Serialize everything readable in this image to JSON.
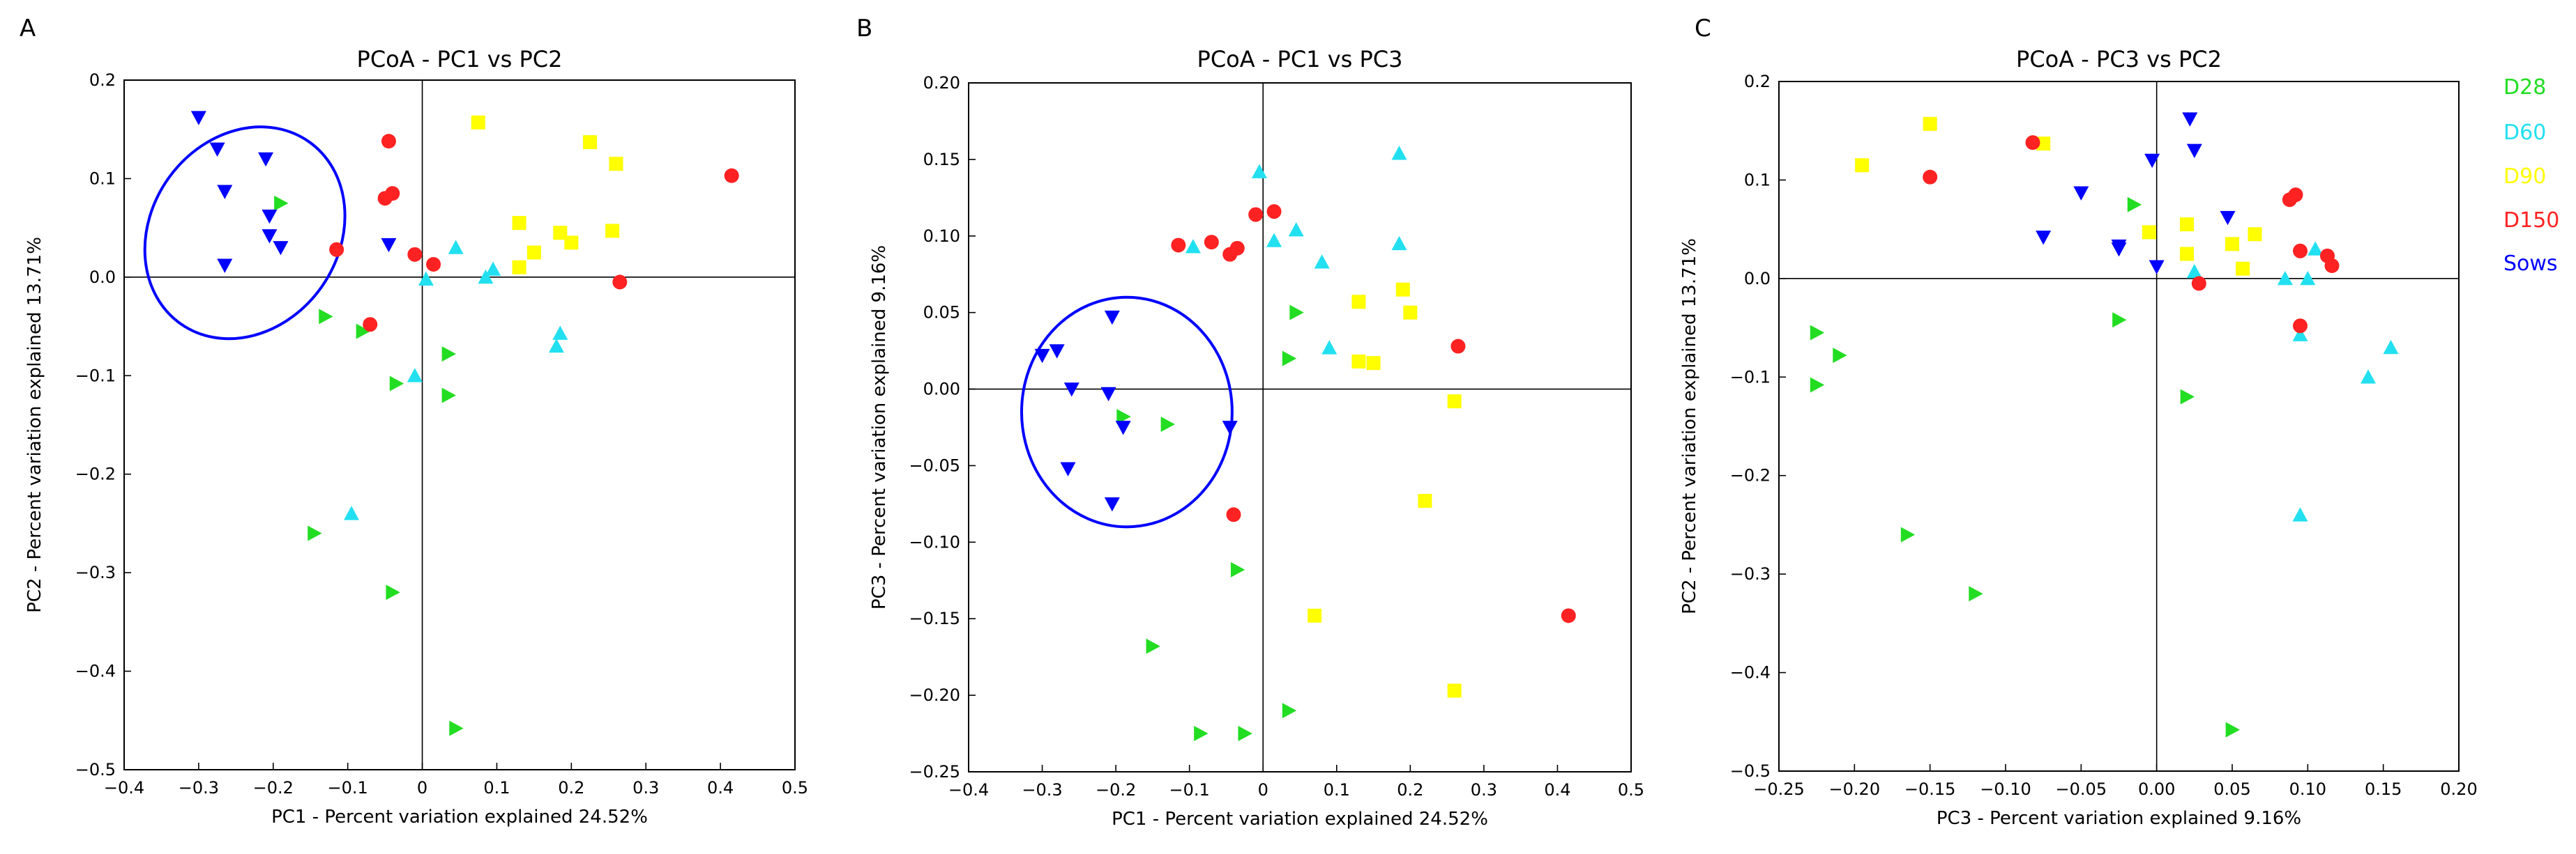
{
  "legend": {
    "entries": [
      {
        "label": "D28",
        "color": "#22dd22",
        "marker": "triangle-right"
      },
      {
        "label": "D60",
        "color": "#22e0f0",
        "marker": "triangle-up"
      },
      {
        "label": "D90",
        "color": "#ffff00",
        "marker": "square"
      },
      {
        "label": "D150",
        "color": "#ff2222",
        "marker": "circle"
      },
      {
        "label": "Sows",
        "color": "#0000ff",
        "marker": "triangle-down"
      }
    ]
  },
  "chart_data": [
    {
      "panel_label": "A",
      "type": "scatter",
      "title": "PCoA - PC1 vs PC2",
      "xlabel": "PC1 - Percent variation explained 24.52%",
      "ylabel": "PC2 - Percent variation explained 13.71%",
      "xlim": [
        -0.4,
        0.5
      ],
      "ylim": [
        -0.5,
        0.2
      ],
      "xticks": [
        -0.4,
        -0.3,
        -0.2,
        -0.1,
        0,
        0.1,
        0.2,
        0.3,
        0.4,
        0.5
      ],
      "yticks": [
        -0.5,
        -0.4,
        -0.3,
        -0.2,
        -0.1,
        0,
        0.1,
        0.2
      ],
      "xtick_labels": [
        "−0.4",
        "−0.3",
        "−0.2",
        "−0.1",
        "0",
        "0.1",
        "0.2",
        "0.3",
        "0.4",
        "0.5"
      ],
      "ytick_labels": [
        "−0.5",
        "−0.4",
        "−0.3",
        "−0.2",
        "−0.1",
        "0.0",
        "0.1",
        "0.2"
      ],
      "ellipse": {
        "cx": -0.238,
        "cy": 0.045,
        "rx": 0.126,
        "ry": 0.113,
        "rotation_deg": 35
      },
      "series": [
        {
          "name": "D28",
          "points": [
            [
              -0.19,
              0.075
            ],
            [
              -0.13,
              -0.04
            ],
            [
              -0.08,
              -0.055
            ],
            [
              -0.035,
              -0.108
            ],
            [
              0.035,
              -0.078
            ],
            [
              0.035,
              -0.12
            ],
            [
              -0.145,
              -0.26
            ],
            [
              -0.04,
              -0.32
            ],
            [
              0.045,
              -0.458
            ]
          ]
        },
        {
          "name": "D60",
          "points": [
            [
              0.005,
              -0.002
            ],
            [
              0.045,
              0.03
            ],
            [
              0.085,
              0.0
            ],
            [
              0.095,
              0.008
            ],
            [
              0.18,
              -0.07
            ],
            [
              0.185,
              -0.057
            ],
            [
              -0.095,
              -0.24
            ],
            [
              -0.01,
              -0.1
            ]
          ]
        },
        {
          "name": "D90",
          "points": [
            [
              0.075,
              0.157
            ],
            [
              0.225,
              0.137
            ],
            [
              0.26,
              0.115
            ],
            [
              0.13,
              0.055
            ],
            [
              0.185,
              0.045
            ],
            [
              0.2,
              0.035
            ],
            [
              0.15,
              0.025
            ],
            [
              0.13,
              0.01
            ],
            [
              0.255,
              0.047
            ]
          ]
        },
        {
          "name": "D150",
          "points": [
            [
              -0.045,
              0.138
            ],
            [
              -0.04,
              0.085
            ],
            [
              -0.05,
              0.08
            ],
            [
              -0.115,
              0.028
            ],
            [
              -0.01,
              0.023
            ],
            [
              0.015,
              0.013
            ],
            [
              0.265,
              -0.005
            ],
            [
              -0.07,
              -0.048
            ],
            [
              0.415,
              0.103
            ]
          ]
        },
        {
          "name": "Sows",
          "points": [
            [
              -0.3,
              0.162
            ],
            [
              -0.275,
              0.13
            ],
            [
              -0.265,
              0.087
            ],
            [
              -0.21,
              0.12
            ],
            [
              -0.205,
              0.062
            ],
            [
              -0.205,
              0.042
            ],
            [
              -0.19,
              0.03
            ],
            [
              -0.265,
              0.012
            ],
            [
              -0.045,
              0.033
            ]
          ]
        }
      ]
    },
    {
      "panel_label": "B",
      "type": "scatter",
      "title": "PCoA - PC1 vs PC3",
      "xlabel": "PC1 - Percent variation explained 24.52%",
      "ylabel": "PC3 - Percent variation explained 9.16%",
      "xlim": [
        -0.4,
        0.5
      ],
      "ylim": [
        -0.25,
        0.2
      ],
      "xticks": [
        -0.4,
        -0.3,
        -0.2,
        -0.1,
        0,
        0.1,
        0.2,
        0.3,
        0.4,
        0.5
      ],
      "yticks": [
        -0.25,
        -0.2,
        -0.15,
        -0.1,
        -0.05,
        0,
        0.05,
        0.1,
        0.15,
        0.2
      ],
      "xtick_labels": [
        "−0.4",
        "−0.3",
        "−0.2",
        "−0.1",
        "0",
        "0.1",
        "0.2",
        "0.3",
        "0.4",
        "0.5"
      ],
      "ytick_labels": [
        "−0.25",
        "−0.20",
        "−0.15",
        "−0.10",
        "−0.05",
        "0.00",
        "0.05",
        "0.10",
        "0.15",
        "0.20"
      ],
      "ellipse": {
        "cx": -0.185,
        "cy": -0.015,
        "rx": 0.143,
        "ry": 0.075,
        "rotation_deg": 0
      },
      "series": [
        {
          "name": "D28",
          "points": [
            [
              0.045,
              0.05
            ],
            [
              0.035,
              0.02
            ],
            [
              -0.19,
              -0.018
            ],
            [
              -0.13,
              -0.023
            ],
            [
              -0.035,
              -0.118
            ],
            [
              -0.15,
              -0.168
            ],
            [
              -0.085,
              -0.225
            ],
            [
              -0.025,
              -0.225
            ],
            [
              0.035,
              -0.21
            ]
          ]
        },
        {
          "name": "D60",
          "points": [
            [
              -0.005,
              0.142
            ],
            [
              -0.095,
              0.093
            ],
            [
              0.015,
              0.097
            ],
            [
              0.045,
              0.104
            ],
            [
              0.08,
              0.083
            ],
            [
              0.185,
              0.154
            ],
            [
              0.185,
              0.095
            ],
            [
              0.09,
              0.027
            ]
          ]
        },
        {
          "name": "D90",
          "points": [
            [
              0.13,
              0.057
            ],
            [
              0.19,
              0.065
            ],
            [
              0.2,
              0.05
            ],
            [
              0.13,
              0.018
            ],
            [
              0.15,
              0.017
            ],
            [
              0.26,
              -0.008
            ],
            [
              0.22,
              -0.073
            ],
            [
              0.07,
              -0.148
            ],
            [
              0.26,
              -0.197
            ]
          ]
        },
        {
          "name": "D150",
          "points": [
            [
              -0.115,
              0.094
            ],
            [
              -0.07,
              0.096
            ],
            [
              -0.045,
              0.088
            ],
            [
              -0.035,
              0.092
            ],
            [
              -0.01,
              0.114
            ],
            [
              0.015,
              0.116
            ],
            [
              0.265,
              0.028
            ],
            [
              -0.04,
              -0.082
            ],
            [
              0.415,
              -0.148
            ]
          ]
        },
        {
          "name": "Sows",
          "points": [
            [
              -0.3,
              0.022
            ],
            [
              -0.28,
              0.025
            ],
            [
              -0.26,
              0.0
            ],
            [
              -0.205,
              0.047
            ],
            [
              -0.21,
              -0.003
            ],
            [
              -0.19,
              -0.025
            ],
            [
              -0.265,
              -0.052
            ],
            [
              -0.205,
              -0.075
            ],
            [
              -0.045,
              -0.025
            ]
          ]
        }
      ]
    },
    {
      "panel_label": "C",
      "type": "scatter",
      "title": "PCoA - PC3 vs PC2",
      "xlabel": "PC3 - Percent variation explained 9.16%",
      "ylabel": "PC2 - Percent variation explained 13.71%",
      "xlim": [
        -0.25,
        0.2
      ],
      "ylim": [
        -0.5,
        0.2
      ],
      "xticks": [
        -0.25,
        -0.2,
        -0.15,
        -0.1,
        -0.05,
        0,
        0.05,
        0.1,
        0.15,
        0.2
      ],
      "yticks": [
        -0.5,
        -0.4,
        -0.3,
        -0.2,
        -0.1,
        0,
        0.1,
        0.2
      ],
      "xtick_labels": [
        "−0.25",
        "−0.20",
        "−0.15",
        "−0.10",
        "−0.05",
        "0.00",
        "0.05",
        "0.10",
        "0.15",
        "0.20"
      ],
      "ytick_labels": [
        "−0.5",
        "−0.4",
        "−0.3",
        "−0.2",
        "−0.1",
        "0.0",
        "0.1",
        "0.2"
      ],
      "ellipse": null,
      "series": [
        {
          "name": "D28",
          "points": [
            [
              -0.015,
              0.075
            ],
            [
              -0.025,
              -0.042
            ],
            [
              -0.225,
              -0.055
            ],
            [
              -0.21,
              -0.078
            ],
            [
              -0.225,
              -0.108
            ],
            [
              0.02,
              -0.12
            ],
            [
              -0.165,
              -0.26
            ],
            [
              -0.12,
              -0.32
            ],
            [
              0.05,
              -0.458
            ]
          ]
        },
        {
          "name": "D60",
          "points": [
            [
              0.025,
              0.007
            ],
            [
              0.085,
              0.0
            ],
            [
              0.1,
              0.0
            ],
            [
              0.105,
              0.03
            ],
            [
              0.095,
              -0.057
            ],
            [
              0.155,
              -0.07
            ],
            [
              0.14,
              -0.1
            ],
            [
              0.095,
              -0.24
            ]
          ]
        },
        {
          "name": "D90",
          "points": [
            [
              -0.15,
              0.157
            ],
            [
              -0.075,
              0.137
            ],
            [
              -0.195,
              0.115
            ],
            [
              0.02,
              0.055
            ],
            [
              -0.005,
              0.047
            ],
            [
              0.065,
              0.045
            ],
            [
              0.05,
              0.035
            ],
            [
              0.02,
              0.025
            ],
            [
              0.057,
              0.01
            ]
          ]
        },
        {
          "name": "D150",
          "points": [
            [
              -0.082,
              0.138
            ],
            [
              -0.15,
              0.103
            ],
            [
              0.088,
              0.08
            ],
            [
              0.092,
              0.085
            ],
            [
              0.095,
              0.028
            ],
            [
              0.113,
              0.023
            ],
            [
              0.116,
              0.013
            ],
            [
              0.028,
              -0.005
            ],
            [
              0.095,
              -0.048
            ]
          ]
        },
        {
          "name": "Sows",
          "points": [
            [
              0.022,
              0.162
            ],
            [
              0.025,
              0.13
            ],
            [
              -0.075,
              0.042
            ],
            [
              -0.05,
              0.087
            ],
            [
              -0.003,
              0.12
            ],
            [
              -0.025,
              0.033
            ],
            [
              -0.025,
              0.03
            ],
            [
              0.0,
              0.012
            ],
            [
              0.047,
              0.062
            ]
          ]
        }
      ]
    }
  ]
}
